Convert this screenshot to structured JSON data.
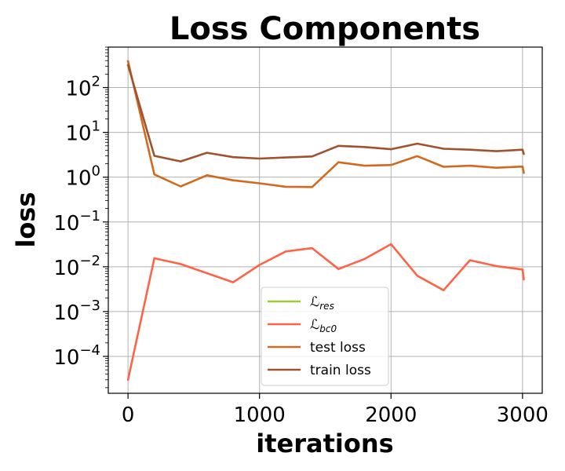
{
  "chart_data": {
    "type": "line",
    "title": "Loss Components",
    "xlabel": "iterations",
    "ylabel": "loss",
    "yscale": "log",
    "xlim": [
      -150,
      3150
    ],
    "ylim": [
      1.5e-05,
      800
    ],
    "xticks": [
      0,
      1000,
      2000,
      3000
    ],
    "xtick_labels": [
      "0",
      "1000",
      "2000",
      "3000"
    ],
    "yticks": [
      0.0001,
      0.001,
      0.01,
      0.1,
      1,
      10,
      100
    ],
    "ytick_labels": [
      {
        "base": "10",
        "exp": "−4"
      },
      {
        "base": "10",
        "exp": "−3"
      },
      {
        "base": "10",
        "exp": "−2"
      },
      {
        "base": "10",
        "exp": "−1"
      },
      {
        "base": "10",
        "exp": "0"
      },
      {
        "base": "10",
        "exp": "1"
      },
      {
        "base": "10",
        "exp": "2"
      }
    ],
    "grid": true,
    "legend_position": "lower-center",
    "series": [
      {
        "name": "ℒ_res",
        "legend_main": "ℒ",
        "legend_sub": "res",
        "color": "#9acd32",
        "x": [],
        "values": []
      },
      {
        "name": "ℒ_bc0",
        "legend_main": "ℒ",
        "legend_sub": "bc0",
        "color": "#ff6347",
        "x": [
          0,
          200,
          400,
          600,
          800,
          1000,
          1200,
          1400,
          1600,
          1800,
          2000,
          2200,
          2400,
          2600,
          2800,
          3000,
          3010
        ],
        "values": [
          3e-05,
          0.0155,
          0.0115,
          0.0072,
          0.0045,
          0.011,
          0.022,
          0.026,
          0.0089,
          0.015,
          0.032,
          0.0063,
          0.003,
          0.014,
          0.0104,
          0.0087,
          0.0052
        ]
      },
      {
        "name": "test loss",
        "legend_main": "test loss",
        "legend_sub": "",
        "color": "#d2691e",
        "x": [
          0,
          200,
          400,
          600,
          800,
          1000,
          1200,
          1400,
          1600,
          1800,
          2000,
          2200,
          2400,
          2600,
          2800,
          3000,
          3010
        ],
        "values": [
          390,
          1.15,
          0.62,
          1.1,
          0.85,
          0.73,
          0.61,
          0.6,
          2.15,
          1.8,
          1.87,
          2.95,
          1.7,
          1.8,
          1.62,
          1.72,
          1.25
        ]
      },
      {
        "name": "train loss",
        "legend_main": "train loss",
        "legend_sub": "",
        "color": "#a0522d",
        "x": [
          0,
          200,
          400,
          600,
          800,
          1000,
          1200,
          1400,
          1600,
          1800,
          2000,
          2200,
          2400,
          2600,
          2800,
          3000,
          3010
        ],
        "values": [
          320,
          3.0,
          2.25,
          3.5,
          2.8,
          2.6,
          2.75,
          2.9,
          5.0,
          4.7,
          4.2,
          5.6,
          4.3,
          4.1,
          3.8,
          4.1,
          3.3
        ]
      }
    ]
  }
}
